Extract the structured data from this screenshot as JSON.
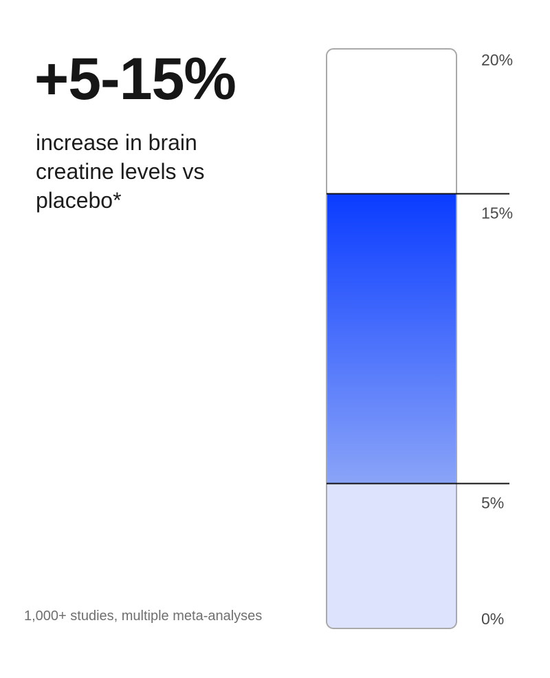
{
  "headline": "+5-15%",
  "subtext": "increase in brain creatine levels vs placebo*",
  "footnote": "1,000+ studies, multiple meta-analyses",
  "colors": {
    "range_top": "#0a3cff",
    "range_bottom": "#8aa4f8",
    "baseline_fill": "#dde3fd",
    "outline": "#a9a9a9",
    "marker_line": "#111111"
  },
  "chart_data": {
    "type": "bar",
    "orientation": "vertical",
    "ylim": [
      0,
      20
    ],
    "ticks": [
      {
        "value": 20,
        "label": "20%"
      },
      {
        "value": 15,
        "label": "15%"
      },
      {
        "value": 5,
        "label": "5%"
      },
      {
        "value": 0,
        "label": "0%"
      }
    ],
    "range": {
      "low": 5,
      "high": 15
    },
    "grid": false,
    "legend": "none"
  }
}
